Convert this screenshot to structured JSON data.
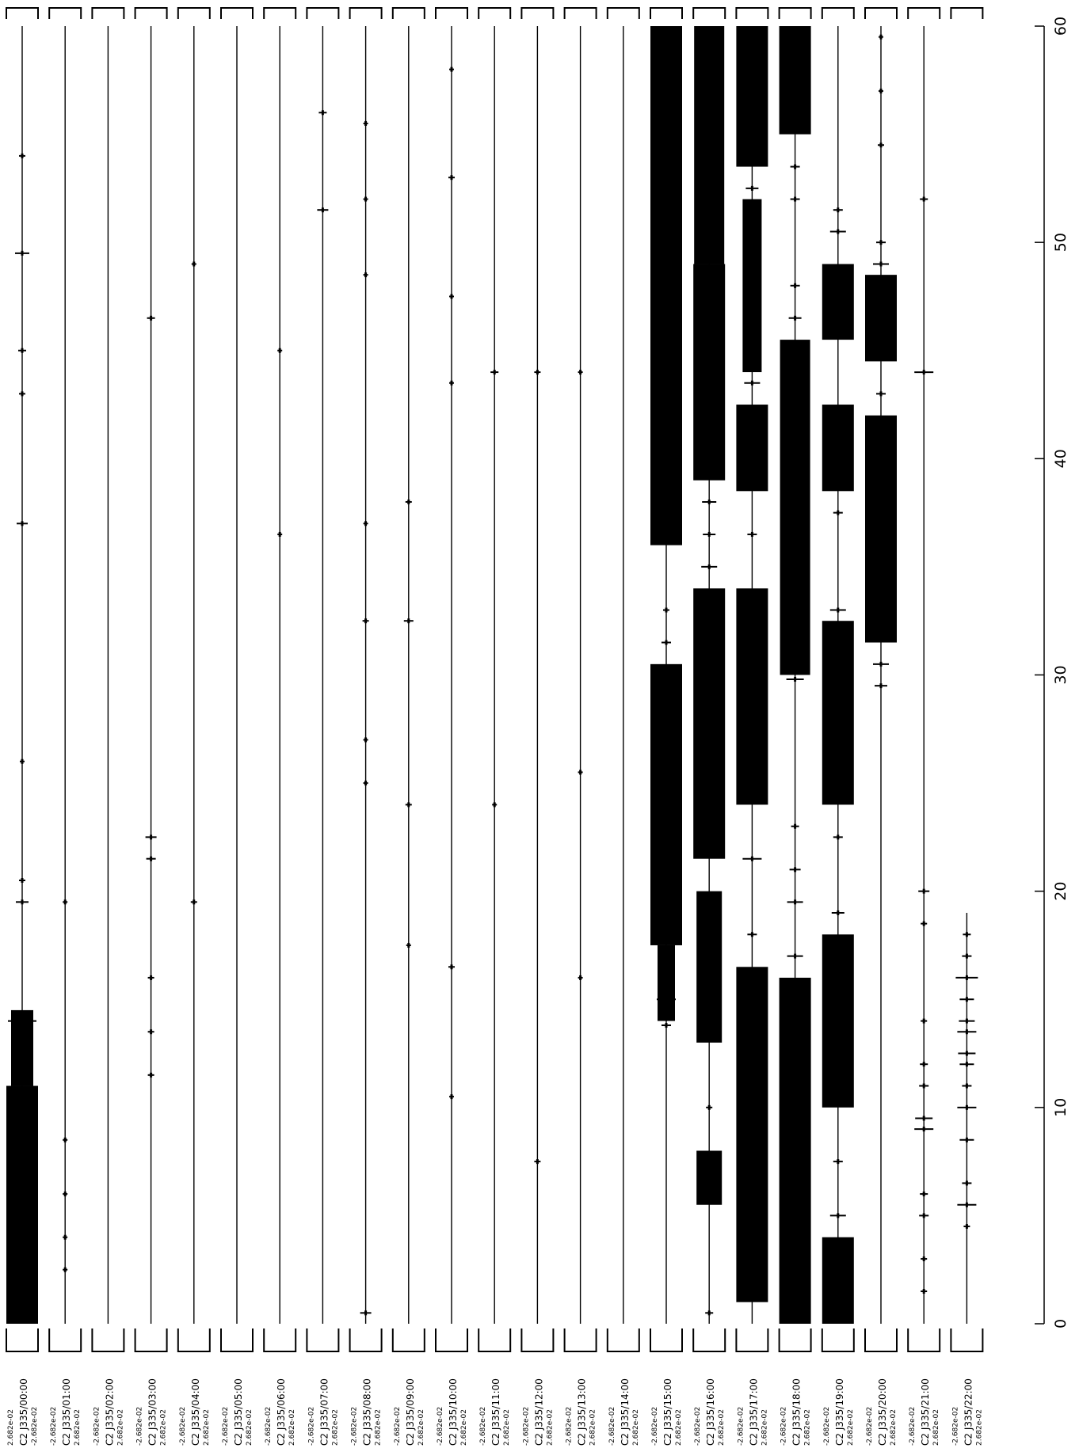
{
  "chart_data": {
    "type": "line",
    "title": "",
    "xlabel": "",
    "ylabel": "",
    "xlim": [
      0,
      60
    ],
    "xticks": [
      0,
      10,
      20,
      30,
      40,
      50,
      60
    ],
    "grid": false,
    "legend": "none",
    "series": [
      {
        "label": "C2 J335/00:00",
        "scale_low": "2.682e-02",
        "scale_high": "-2.682e-02",
        "blocks": [
          {
            "x0": 0.0,
            "x1": 11.0,
            "h": 1.0
          },
          {
            "x0": 11.0,
            "x1": 14.5,
            "h": 0.7
          }
        ],
        "events": [
          {
            "x": 14.0,
            "h": 0.9
          },
          {
            "x": 19.5,
            "h": 0.4
          },
          {
            "x": 20.5,
            "h": 0.2
          },
          {
            "x": 26.0,
            "h": 0.15
          },
          {
            "x": 37.0,
            "h": 0.35
          },
          {
            "x": 43.0,
            "h": 0.2
          },
          {
            "x": 45.0,
            "h": 0.25
          },
          {
            "x": 49.5,
            "h": 0.45
          },
          {
            "x": 54.0,
            "h": 0.2
          }
        ]
      },
      {
        "label": "C2 J335/01:00",
        "scale_low": "-2.682e-02",
        "scale_high": "2.682e-02",
        "blocks": [],
        "events": [
          {
            "x": 2.5,
            "h": 0.15
          },
          {
            "x": 4.0,
            "h": 0.15
          },
          {
            "x": 6.0,
            "h": 0.15
          },
          {
            "x": 8.5,
            "h": 0.15
          },
          {
            "x": 19.5,
            "h": 0.15
          }
        ]
      },
      {
        "label": "C2 J335/02:00",
        "scale_low": "-2.682e-02",
        "scale_high": "2.682e-02",
        "blocks": [],
        "events": []
      },
      {
        "label": "C2 J335/03:00",
        "scale_low": "-2.682e-02",
        "scale_high": "2.682e-02",
        "blocks": [],
        "events": [
          {
            "x": 11.5,
            "h": 0.2
          },
          {
            "x": 13.5,
            "h": 0.2
          },
          {
            "x": 16.0,
            "h": 0.2
          },
          {
            "x": 21.5,
            "h": 0.3
          },
          {
            "x": 22.5,
            "h": 0.35
          },
          {
            "x": 46.5,
            "h": 0.25
          }
        ]
      },
      {
        "label": "C2 J335/04:00",
        "scale_low": "-2.682e-02",
        "scale_high": "2.682e-02",
        "blocks": [],
        "events": [
          {
            "x": 19.5,
            "h": 0.2
          },
          {
            "x": 49.0,
            "h": 0.15
          }
        ]
      },
      {
        "label": "C2 J335/05:00",
        "scale_low": "-2.682e-02",
        "scale_high": "2.682e-02",
        "blocks": [],
        "events": []
      },
      {
        "label": "C2 J335/06:00",
        "scale_low": "-2.682e-02",
        "scale_high": "2.682e-02",
        "blocks": [],
        "events": [
          {
            "x": 36.5,
            "h": 0.15
          },
          {
            "x": 45.0,
            "h": 0.15
          }
        ]
      },
      {
        "label": "C2 J335/07:00",
        "scale_low": "-2.682e-02",
        "scale_high": "2.682e-02",
        "blocks": [],
        "events": [
          {
            "x": 51.5,
            "h": 0.35
          },
          {
            "x": 56.0,
            "h": 0.25
          }
        ]
      },
      {
        "label": "C2 J335/08:00",
        "scale_low": "-2.682e-02",
        "scale_high": "2.682e-02",
        "blocks": [],
        "events": [
          {
            "x": 0.5,
            "h": 0.35
          },
          {
            "x": 25.0,
            "h": 0.15
          },
          {
            "x": 27.0,
            "h": 0.15
          },
          {
            "x": 32.5,
            "h": 0.2
          },
          {
            "x": 37.0,
            "h": 0.15
          },
          {
            "x": 48.5,
            "h": 0.15
          },
          {
            "x": 52.0,
            "h": 0.15
          },
          {
            "x": 55.5,
            "h": 0.15
          }
        ]
      },
      {
        "label": "C2 J335/09:00",
        "scale_low": "-2.682e-02",
        "scale_high": "2.682e-02",
        "blocks": [],
        "events": [
          {
            "x": 17.5,
            "h": 0.15
          },
          {
            "x": 24.0,
            "h": 0.2
          },
          {
            "x": 32.5,
            "h": 0.3
          },
          {
            "x": 38.0,
            "h": 0.2
          }
        ]
      },
      {
        "label": "C2 J335/10:00",
        "scale_low": "-2.682e-02",
        "scale_high": "2.682e-02",
        "blocks": [],
        "events": [
          {
            "x": 10.5,
            "h": 0.15
          },
          {
            "x": 16.5,
            "h": 0.2
          },
          {
            "x": 43.5,
            "h": 0.15
          },
          {
            "x": 47.5,
            "h": 0.15
          },
          {
            "x": 53.0,
            "h": 0.2
          },
          {
            "x": 58.0,
            "h": 0.15
          }
        ]
      },
      {
        "label": "C2 J335/11:00",
        "scale_low": "-2.682e-02",
        "scale_high": "2.682e-02",
        "blocks": [],
        "events": [
          {
            "x": 24.0,
            "h": 0.15
          },
          {
            "x": 44.0,
            "h": 0.25
          }
        ]
      },
      {
        "label": "C2 J335/12:00",
        "scale_low": "-2.682e-02",
        "scale_high": "2.682e-02",
        "blocks": [],
        "events": [
          {
            "x": 7.5,
            "h": 0.2
          },
          {
            "x": 44.0,
            "h": 0.2
          }
        ]
      },
      {
        "label": "C2 J335/13:00",
        "scale_low": "-2.682e-02",
        "scale_high": "2.682e-02",
        "blocks": [],
        "events": [
          {
            "x": 16.0,
            "h": 0.15
          },
          {
            "x": 25.5,
            "h": 0.15
          },
          {
            "x": 44.0,
            "h": 0.15
          }
        ]
      },
      {
        "label": "C2 J335/14:00",
        "scale_low": "-2.682e-02",
        "scale_high": "2.682e-02",
        "blocks": [],
        "events": []
      },
      {
        "label": "C2 J335/15:00",
        "scale_low": "-2.682e-02",
        "scale_high": "2.682e-02",
        "blocks": [
          {
            "x0": 17.5,
            "x1": 30.5,
            "h": 1.0
          },
          {
            "x0": 36.0,
            "x1": 60.0,
            "h": 1.0
          },
          {
            "x0": 14.0,
            "x1": 17.5,
            "h": 0.55
          }
        ],
        "events": [
          {
            "x": 13.8,
            "h": 0.3
          },
          {
            "x": 15.0,
            "h": 0.6
          },
          {
            "x": 31.5,
            "h": 0.3
          },
          {
            "x": 33.0,
            "h": 0.2
          }
        ]
      },
      {
        "label": "C2 J335/16:00",
        "scale_low": "-2.682e-02",
        "scale_high": "2.682e-02",
        "blocks": [
          {
            "x0": 5.5,
            "x1": 8.0,
            "h": 0.8
          },
          {
            "x0": 13.0,
            "x1": 20.0,
            "h": 0.8
          },
          {
            "x0": 21.5,
            "x1": 34.0,
            "h": 1.0
          },
          {
            "x0": 39.0,
            "x1": 49.0,
            "h": 1.0
          },
          {
            "x0": 49.0,
            "x1": 60.0,
            "h": 0.95
          }
        ],
        "events": [
          {
            "x": 0.5,
            "h": 0.25
          },
          {
            "x": 10.0,
            "h": 0.2
          },
          {
            "x": 35.0,
            "h": 0.5
          },
          {
            "x": 36.5,
            "h": 0.4
          },
          {
            "x": 38.0,
            "h": 0.45
          }
        ]
      },
      {
        "label": "C2 J335/17:00",
        "scale_low": "-2.682e-02",
        "scale_high": "2.682e-02",
        "blocks": [
          {
            "x0": 1.0,
            "x1": 16.5,
            "h": 1.0
          },
          {
            "x0": 24.0,
            "x1": 34.0,
            "h": 1.0
          },
          {
            "x0": 38.5,
            "x1": 42.5,
            "h": 1.0
          },
          {
            "x0": 44.0,
            "x1": 52.0,
            "h": 0.6
          },
          {
            "x0": 53.5,
            "x1": 60.0,
            "h": 1.0
          }
        ],
        "events": [
          {
            "x": 18.0,
            "h": 0.3
          },
          {
            "x": 21.5,
            "h": 0.6
          },
          {
            "x": 36.5,
            "h": 0.3
          },
          {
            "x": 43.5,
            "h": 0.5
          },
          {
            "x": 52.5,
            "h": 0.4
          }
        ]
      },
      {
        "label": "C2 J335/18:00",
        "scale_low": "-2.682e-02",
        "scale_high": "2.682e-02",
        "blocks": [
          {
            "x0": 0.0,
            "x1": 16.0,
            "h": 1.0
          },
          {
            "x0": 30.0,
            "x1": 45.5,
            "h": 0.95
          },
          {
            "x0": 55.0,
            "x1": 60.0,
            "h": 1.0
          }
        ],
        "events": [
          {
            "x": 17.0,
            "h": 0.5
          },
          {
            "x": 19.5,
            "h": 0.5
          },
          {
            "x": 21.0,
            "h": 0.35
          },
          {
            "x": 23.0,
            "h": 0.25
          },
          {
            "x": 29.8,
            "h": 0.55
          },
          {
            "x": 46.5,
            "h": 0.4
          },
          {
            "x": 48.0,
            "h": 0.3
          },
          {
            "x": 52.0,
            "h": 0.3
          },
          {
            "x": 53.5,
            "h": 0.3
          }
        ]
      },
      {
        "label": "C2 J335/19:00",
        "scale_low": "-2.682e-02",
        "scale_high": "2.682e-02",
        "blocks": [
          {
            "x0": 0.0,
            "x1": 4.0,
            "h": 1.0
          },
          {
            "x0": 10.0,
            "x1": 18.0,
            "h": 1.0
          },
          {
            "x0": 24.0,
            "x1": 32.5,
            "h": 1.0
          },
          {
            "x0": 38.5,
            "x1": 42.5,
            "h": 1.0
          },
          {
            "x0": 45.5,
            "x1": 49.0,
            "h": 1.0
          }
        ],
        "events": [
          {
            "x": 5.0,
            "h": 0.5
          },
          {
            "x": 7.5,
            "h": 0.3
          },
          {
            "x": 19.0,
            "h": 0.4
          },
          {
            "x": 22.5,
            "h": 0.3
          },
          {
            "x": 33.0,
            "h": 0.5
          },
          {
            "x": 37.5,
            "h": 0.3
          },
          {
            "x": 50.5,
            "h": 0.5
          },
          {
            "x": 51.5,
            "h": 0.3
          }
        ]
      },
      {
        "label": "C2 J335/20:00",
        "scale_low": "-2.682e-02",
        "scale_high": "2.682e-02",
        "blocks": [
          {
            "x0": 31.5,
            "x1": 42.0,
            "h": 1.0
          },
          {
            "x0": 44.5,
            "x1": 48.5,
            "h": 1.0
          }
        ],
        "events": [
          {
            "x": 29.5,
            "h": 0.4
          },
          {
            "x": 30.5,
            "h": 0.5
          },
          {
            "x": 43.0,
            "h": 0.3
          },
          {
            "x": 49.0,
            "h": 0.5
          },
          {
            "x": 50.0,
            "h": 0.3
          },
          {
            "x": 54.5,
            "h": 0.2
          },
          {
            "x": 57.0,
            "h": 0.15
          },
          {
            "x": 59.5,
            "h": 0.15
          }
        ]
      },
      {
        "label": "C2 J335/21:00",
        "scale_low": "-2.682e-02",
        "scale_high": "2.682e-02",
        "blocks": [],
        "events": [
          {
            "x": 1.5,
            "h": 0.2
          },
          {
            "x": 3.0,
            "h": 0.2
          },
          {
            "x": 5.0,
            "h": 0.3
          },
          {
            "x": 6.0,
            "h": 0.25
          },
          {
            "x": 9.0,
            "h": 0.6
          },
          {
            "x": 9.5,
            "h": 0.55
          },
          {
            "x": 11.0,
            "h": 0.3
          },
          {
            "x": 12.0,
            "h": 0.25
          },
          {
            "x": 14.0,
            "h": 0.2
          },
          {
            "x": 18.5,
            "h": 0.2
          },
          {
            "x": 20.0,
            "h": 0.35
          },
          {
            "x": 44.0,
            "h": 0.6
          },
          {
            "x": 52.0,
            "h": 0.25
          }
        ]
      },
      {
        "label": "C2 J335/22:00",
        "scale_low": "-2.682e-02",
        "scale_high": "2.682e-02",
        "end": 19.0,
        "blocks": [],
        "events": [
          {
            "x": 4.5,
            "h": 0.2
          },
          {
            "x": 5.5,
            "h": 0.6
          },
          {
            "x": 6.5,
            "h": 0.3
          },
          {
            "x": 8.5,
            "h": 0.45
          },
          {
            "x": 10.0,
            "h": 0.6
          },
          {
            "x": 11.0,
            "h": 0.3
          },
          {
            "x": 12.0,
            "h": 0.45
          },
          {
            "x": 12.5,
            "h": 0.55
          },
          {
            "x": 13.5,
            "h": 0.6
          },
          {
            "x": 14.0,
            "h": 0.5
          },
          {
            "x": 15.0,
            "h": 0.45
          },
          {
            "x": 16.0,
            "h": 0.7
          },
          {
            "x": 17.0,
            "h": 0.3
          },
          {
            "x": 18.0,
            "h": 0.25
          }
        ]
      }
    ]
  }
}
